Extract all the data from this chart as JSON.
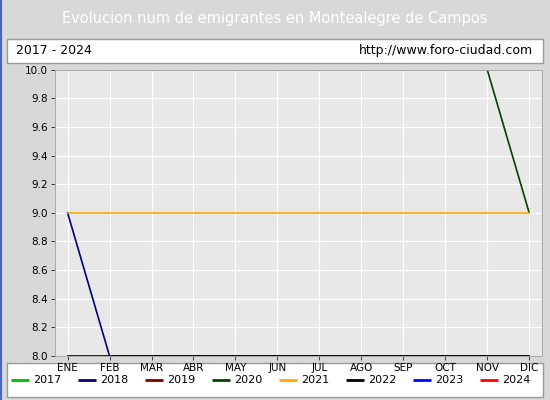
{
  "title": "Evolucion num de emigrantes en Montealegre de Campos",
  "title_bg_color": "#4d7ebf",
  "title_text_color": "#ffffff",
  "subtitle_left": "2017 - 2024",
  "subtitle_right": "http://www.foro-ciudad.com",
  "x_labels": [
    "ENE",
    "FEB",
    "MAR",
    "ABR",
    "MAY",
    "JUN",
    "JUL",
    "AGO",
    "SEP",
    "OCT",
    "NOV",
    "DIC"
  ],
  "ylim": [
    8.0,
    10.0
  ],
  "yticks": [
    8.0,
    8.2,
    8.4,
    8.6,
    8.8,
    9.0,
    9.2,
    9.4,
    9.6,
    9.8,
    10.0
  ],
  "plot_bg_color": "#e8e8e8",
  "grid_color": "#ffffff",
  "outer_bg_color": "#d8d8d8",
  "series": {
    "2017": {
      "color": "#00bb00",
      "data": [
        10.0,
        10.0,
        10.0,
        10.0,
        10.0,
        10.0,
        10.0,
        10.0,
        10.0,
        10.0,
        10.0,
        10.0
      ]
    },
    "2018": {
      "color": "#000080",
      "data": [
        9.0,
        8.0,
        8.0,
        8.0,
        8.0,
        8.0,
        8.0,
        8.0,
        8.0,
        8.0,
        8.0,
        8.0
      ]
    },
    "2019": {
      "color": "#800000",
      "data": [
        null,
        null,
        null,
        null,
        null,
        null,
        null,
        null,
        null,
        null,
        null,
        null
      ]
    },
    "2020": {
      "color": "#004400",
      "data": [
        10.0,
        10.0,
        10.0,
        10.0,
        10.0,
        10.0,
        10.0,
        10.0,
        10.0,
        10.0,
        10.0,
        9.0
      ]
    },
    "2021": {
      "color": "#ffaa00",
      "data": [
        9.0,
        9.0,
        9.0,
        9.0,
        9.0,
        9.0,
        9.0,
        9.0,
        9.0,
        9.0,
        9.0,
        9.0
      ]
    },
    "2022": {
      "color": "#000000",
      "data": [
        8.0,
        8.0,
        8.0,
        8.0,
        8.0,
        8.0,
        8.0,
        8.0,
        8.0,
        8.0,
        8.0,
        8.0
      ]
    },
    "2023": {
      "color": "#0000ff",
      "data": [
        null,
        null,
        null,
        null,
        null,
        null,
        null,
        null,
        null,
        null,
        null,
        null
      ]
    },
    "2024": {
      "color": "#ff0000",
      "data": [
        null,
        null,
        null,
        null,
        null,
        null,
        null,
        null,
        null,
        null,
        10.0,
        10.0
      ]
    }
  },
  "legend_order": [
    "2017",
    "2018",
    "2019",
    "2020",
    "2021",
    "2022",
    "2023",
    "2024"
  ],
  "title_fontsize": 10.5,
  "tick_fontsize": 7.5,
  "legend_fontsize": 8
}
